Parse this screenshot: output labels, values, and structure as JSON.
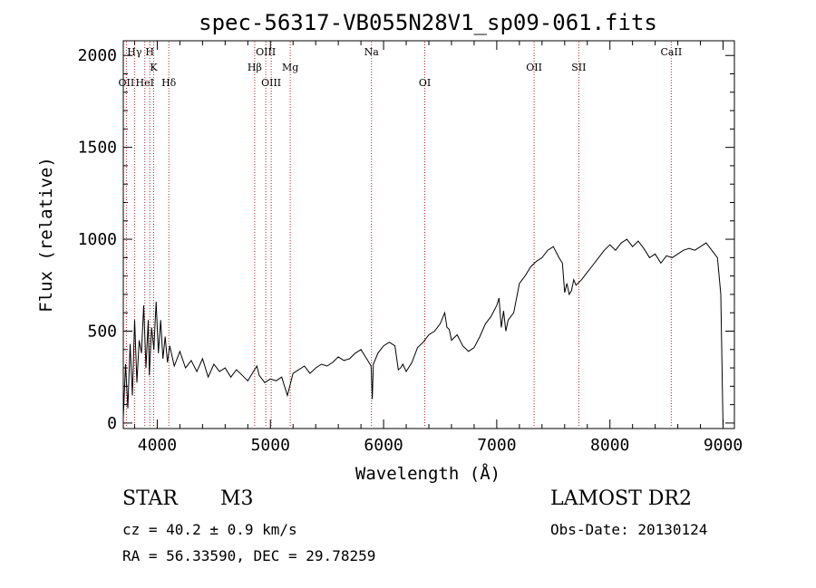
{
  "chart_data": {
    "type": "line",
    "title": "spec-56317-VB055N28V1_sp09-061.fits",
    "xlabel": "Wavelength (Å)",
    "ylabel": "Flux (relative)",
    "xlim": [
      3700,
      9100
    ],
    "ylim": [
      -30,
      2080
    ],
    "xticks": [
      4000,
      5000,
      6000,
      7000,
      8000,
      9000
    ],
    "yticks": [
      0,
      500,
      1000,
      1500,
      2000
    ],
    "grid": false,
    "line_color": "#000000",
    "marker_color": "#b22222",
    "lines": [
      {
        "label": "OII",
        "wavelength": 3727,
        "row": 3
      },
      {
        "label": "Hγ",
        "wavelength": 3799,
        "row": 1
      },
      {
        "label": "HeI",
        "wavelength": 3890,
        "row": 3
      },
      {
        "label": "H",
        "wavelength": 3934,
        "row": 1
      },
      {
        "label": "K",
        "wavelength": 3968,
        "row": 2
      },
      {
        "label": "Hδ",
        "wavelength": 4102,
        "row": 3
      },
      {
        "label": "Hβ",
        "wavelength": 4861,
        "row": 2
      },
      {
        "label": "OIII",
        "wavelength": 4959,
        "row": 1
      },
      {
        "label": "OIII",
        "wavelength": 5007,
        "row": 3
      },
      {
        "label": "Mg",
        "wavelength": 5175,
        "row": 2
      },
      {
        "label": "Na",
        "wavelength": 5893,
        "row": 1
      },
      {
        "label": "OI",
        "wavelength": 6364,
        "row": 3
      },
      {
        "label": "OII",
        "wavelength": 7330,
        "row": 2
      },
      {
        "label": "SII",
        "wavelength": 7725,
        "row": 2
      },
      {
        "label": "CaII",
        "wavelength": 8542,
        "row": 1
      }
    ],
    "spectrum": {
      "x": [
        3700,
        3720,
        3740,
        3760,
        3780,
        3800,
        3820,
        3840,
        3860,
        3880,
        3900,
        3920,
        3930,
        3950,
        3970,
        3990,
        4010,
        4030,
        4050,
        4070,
        4090,
        4110,
        4150,
        4200,
        4250,
        4300,
        4350,
        4400,
        4450,
        4500,
        4550,
        4600,
        4650,
        4700,
        4750,
        4800,
        4850,
        4880,
        4900,
        4950,
        5000,
        5050,
        5100,
        5150,
        5200,
        5250,
        5300,
        5350,
        5400,
        5450,
        5500,
        5550,
        5600,
        5650,
        5700,
        5750,
        5800,
        5850,
        5890,
        5900,
        5910,
        5950,
        6000,
        6050,
        6100,
        6130,
        6150,
        6170,
        6200,
        6250,
        6300,
        6350,
        6400,
        6450,
        6500,
        6540,
        6560,
        6580,
        6600,
        6650,
        6700,
        6750,
        6800,
        6850,
        6900,
        6950,
        7000,
        7020,
        7040,
        7060,
        7080,
        7100,
        7150,
        7200,
        7250,
        7300,
        7350,
        7400,
        7450,
        7500,
        7550,
        7580,
        7600,
        7620,
        7640,
        7660,
        7680,
        7700,
        7750,
        7800,
        7850,
        7900,
        7950,
        8000,
        8050,
        8100,
        8150,
        8200,
        8250,
        8300,
        8350,
        8400,
        8450,
        8500,
        8550,
        8600,
        8650,
        8700,
        8750,
        8800,
        8850,
        8900,
        8950,
        8980,
        9000
      ],
      "y": [
        30,
        320,
        80,
        430,
        150,
        560,
        220,
        450,
        380,
        640,
        300,
        560,
        260,
        520,
        400,
        660,
        380,
        560,
        350,
        470,
        330,
        420,
        310,
        390,
        300,
        340,
        280,
        350,
        250,
        320,
        280,
        300,
        250,
        290,
        260,
        230,
        280,
        310,
        260,
        220,
        240,
        230,
        250,
        150,
        270,
        290,
        310,
        270,
        300,
        320,
        310,
        330,
        360,
        340,
        350,
        380,
        400,
        350,
        310,
        130,
        320,
        380,
        420,
        440,
        420,
        290,
        300,
        320,
        280,
        330,
        410,
        440,
        480,
        500,
        540,
        600,
        520,
        510,
        450,
        480,
        420,
        390,
        410,
        470,
        540,
        580,
        640,
        680,
        520,
        610,
        500,
        560,
        600,
        760,
        800,
        850,
        880,
        900,
        940,
        960,
        900,
        870,
        710,
        760,
        700,
        720,
        780,
        750,
        780,
        820,
        860,
        900,
        940,
        970,
        940,
        980,
        1000,
        960,
        990,
        950,
        900,
        920,
        870,
        910,
        900,
        920,
        940,
        950,
        940,
        960,
        980,
        940,
        900,
        700,
        -50
      ]
    }
  },
  "info": {
    "class_label": "STAR",
    "subclass": "M3",
    "survey": "LAMOST DR2",
    "redshift_text": "cz = 40.2 ± 0.9 km/s",
    "obs_date_text": "Obs-Date: 20130124",
    "coords_text": "RA =  56.33590, DEC =  29.78259"
  }
}
